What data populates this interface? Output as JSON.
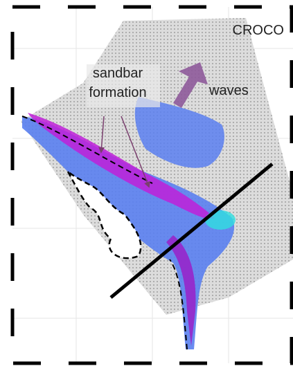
{
  "labels": {
    "model": "CROCO",
    "annotation": [
      "sandbar",
      "formation"
    ],
    "waves": "waves"
  }
}
